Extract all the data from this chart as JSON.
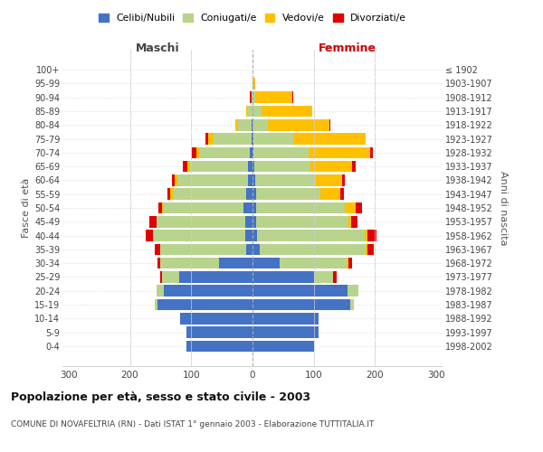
{
  "age_groups": [
    "0-4",
    "5-9",
    "10-14",
    "15-19",
    "20-24",
    "25-29",
    "30-34",
    "35-39",
    "40-44",
    "45-49",
    "50-54",
    "55-59",
    "60-64",
    "65-69",
    "70-74",
    "75-79",
    "80-84",
    "85-89",
    "90-94",
    "95-99",
    "100+"
  ],
  "birth_years": [
    "1998-2002",
    "1993-1997",
    "1988-1992",
    "1983-1987",
    "1978-1982",
    "1973-1977",
    "1968-1972",
    "1963-1967",
    "1958-1962",
    "1953-1957",
    "1948-1952",
    "1943-1947",
    "1938-1942",
    "1933-1937",
    "1928-1932",
    "1923-1927",
    "1918-1922",
    "1913-1917",
    "1908-1912",
    "1903-1907",
    "≤ 1902"
  ],
  "male_celibi": [
    108,
    108,
    118,
    155,
    145,
    120,
    55,
    10,
    12,
    12,
    15,
    10,
    8,
    7,
    4,
    2,
    1,
    0,
    0,
    0,
    0
  ],
  "male_coniugati": [
    0,
    0,
    0,
    4,
    12,
    28,
    95,
    140,
    150,
    145,
    130,
    120,
    115,
    95,
    82,
    62,
    22,
    9,
    2,
    0,
    0
  ],
  "male_vedovi": [
    0,
    0,
    0,
    0,
    0,
    0,
    0,
    0,
    0,
    0,
    3,
    4,
    4,
    5,
    6,
    8,
    5,
    2,
    0,
    0,
    0
  ],
  "male_divorziati": [
    0,
    0,
    0,
    0,
    0,
    2,
    5,
    10,
    12,
    12,
    5,
    5,
    5,
    7,
    7,
    5,
    0,
    0,
    2,
    0,
    0
  ],
  "female_nubili": [
    100,
    108,
    108,
    160,
    155,
    100,
    45,
    12,
    8,
    6,
    6,
    6,
    4,
    3,
    2,
    1,
    0,
    0,
    0,
    0,
    0
  ],
  "female_coniugate": [
    0,
    0,
    0,
    5,
    18,
    32,
    108,
    172,
    175,
    150,
    145,
    105,
    100,
    92,
    90,
    65,
    25,
    15,
    5,
    2,
    0
  ],
  "female_vedove": [
    0,
    0,
    0,
    0,
    0,
    0,
    4,
    4,
    4,
    5,
    18,
    32,
    42,
    68,
    100,
    118,
    100,
    82,
    60,
    3,
    0
  ],
  "female_divorziate": [
    0,
    0,
    0,
    0,
    0,
    5,
    5,
    10,
    15,
    10,
    10,
    6,
    5,
    5,
    4,
    0,
    2,
    0,
    2,
    0,
    0
  ],
  "color_celibi": "#4472c4",
  "color_coniugati": "#b8d48c",
  "color_vedovi": "#ffc000",
  "color_divorziati": "#e00000",
  "legend_labels": [
    "Celibi/Nubili",
    "Coniugati/e",
    "Vedovi/e",
    "Divorziati/e"
  ],
  "title": "Popolazione per età, sesso e stato civile - 2003",
  "subtitle": "COMUNE DI NOVAFELTRIA (RN) - Dati ISTAT 1° gennaio 2003 - Elaborazione TUTTITALIA.IT",
  "label_maschi": "Maschi",
  "label_femmine": "Femmine",
  "label_fasce": "Fasce di età",
  "label_anni": "Anni di nascita",
  "xlim": 310,
  "bg_color": "#ffffff"
}
